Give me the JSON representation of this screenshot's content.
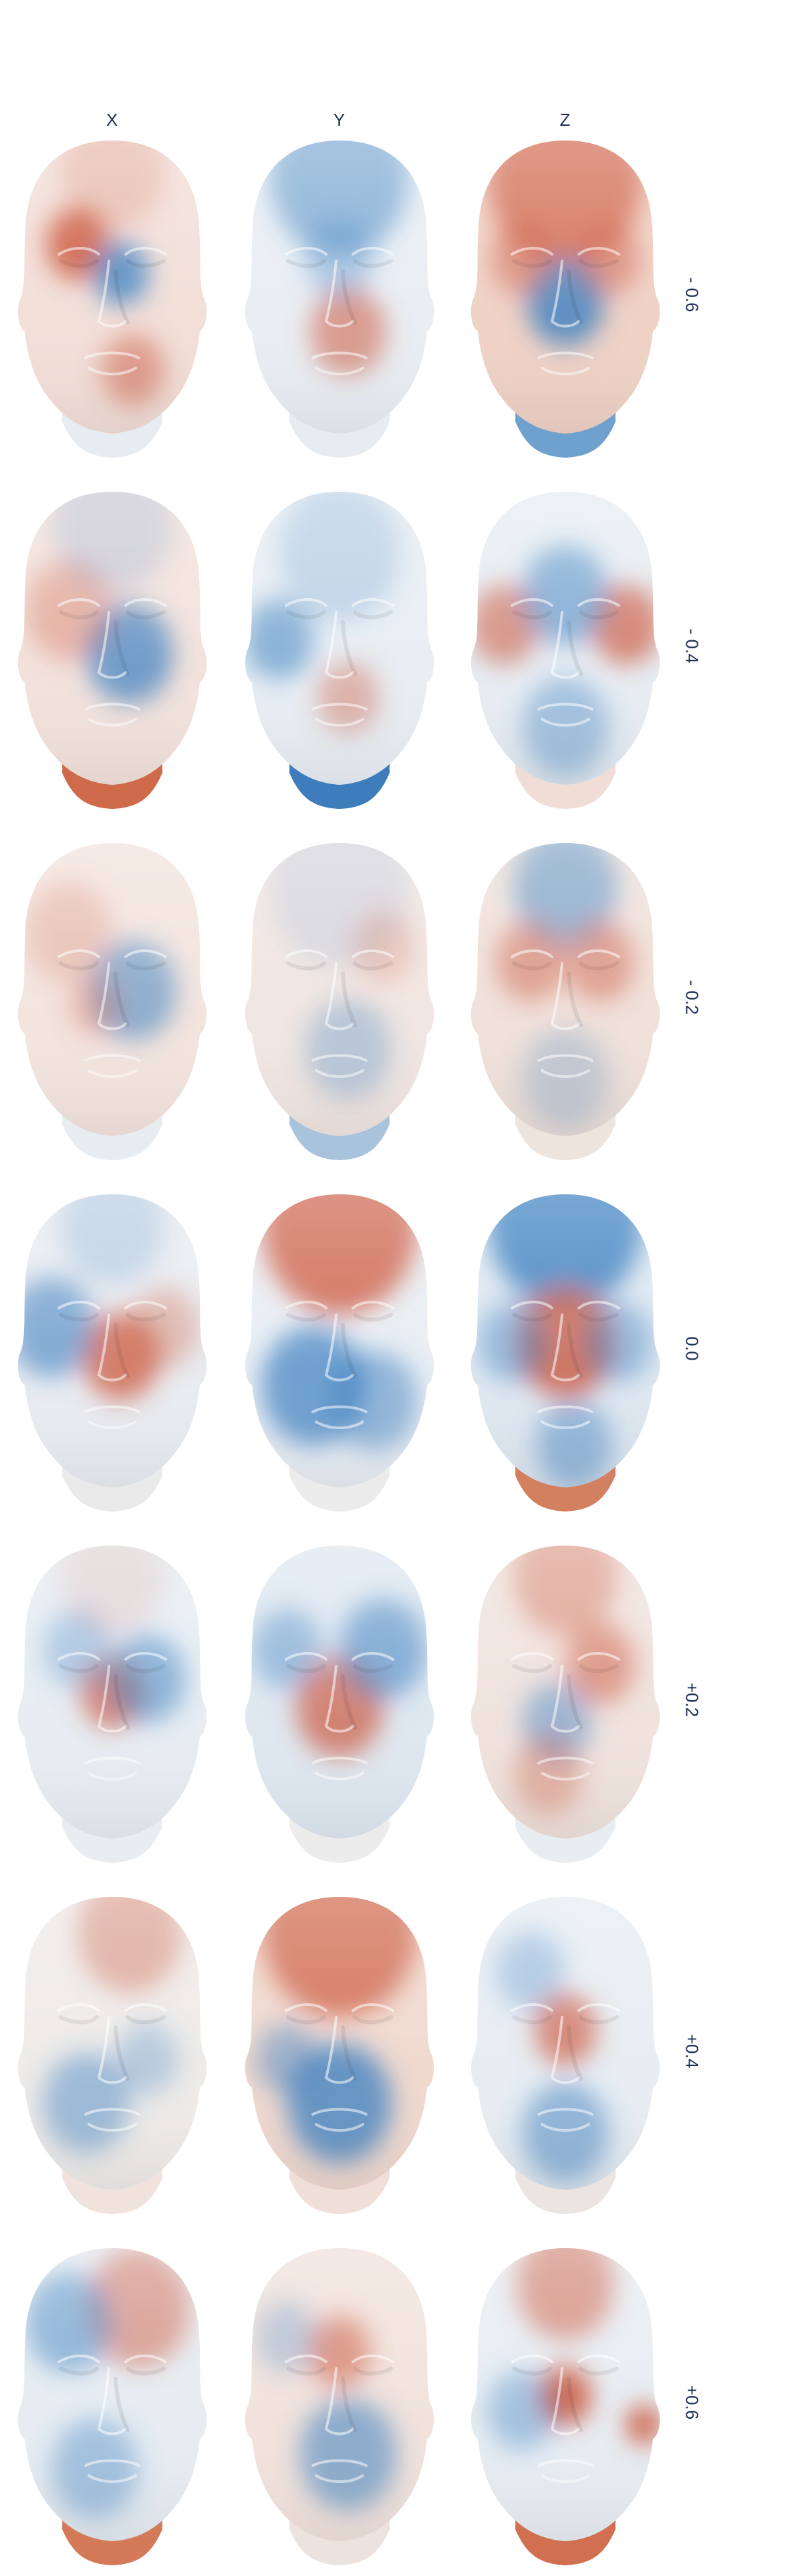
{
  "columns": [
    "X",
    "Y",
    "Z"
  ],
  "rows": [
    "- 0.6",
    "- 0.4",
    "- 0.2",
    "0.0",
    "+0.2",
    "+0.4",
    "+0.6"
  ],
  "colors": {
    "red": "#cc5a3f",
    "blue": "#3b7fc0",
    "neutral": "#efe8e3",
    "label": "#1f2f57"
  },
  "grid": [
    [
      {
        "base": "#f2dfd8",
        "neck": "#e6ecf2",
        "blobs": [
          [
            0.3,
            0.35,
            0.18,
            "red",
            0.9
          ],
          [
            0.55,
            0.45,
            0.16,
            "blue",
            0.8
          ],
          [
            0.62,
            0.78,
            0.18,
            "red",
            0.5
          ],
          [
            0.5,
            0.1,
            0.3,
            "red",
            0.25
          ]
        ]
      },
      {
        "base": "#e9eef4",
        "neck": "#e6ecf2",
        "blobs": [
          [
            0.5,
            0.12,
            0.4,
            "blue",
            0.55
          ],
          [
            0.55,
            0.65,
            0.22,
            "red",
            0.55
          ],
          [
            0.5,
            0.4,
            0.2,
            "blue",
            0.35
          ]
        ]
      },
      {
        "base": "#f0d2c6",
        "neck": "#6fa1cf",
        "blobs": [
          [
            0.5,
            0.12,
            0.45,
            "red",
            0.75
          ],
          [
            0.5,
            0.55,
            0.22,
            "blue",
            0.8
          ],
          [
            0.25,
            0.4,
            0.18,
            "red",
            0.5
          ],
          [
            0.75,
            0.4,
            0.18,
            "red",
            0.5
          ]
        ]
      }
    ],
    [
      {
        "base": "#f3e2dc",
        "neck": "#cf6a4a",
        "blobs": [
          [
            0.6,
            0.55,
            0.25,
            "blue",
            0.7
          ],
          [
            0.25,
            0.4,
            0.25,
            "red",
            0.35
          ],
          [
            0.5,
            0.1,
            0.35,
            "blue",
            0.2
          ]
        ]
      },
      {
        "base": "#e8eef4",
        "neck": "#3e7cbc",
        "blobs": [
          [
            0.15,
            0.5,
            0.2,
            "blue",
            0.55
          ],
          [
            0.55,
            0.7,
            0.18,
            "red",
            0.4
          ],
          [
            0.5,
            0.2,
            0.35,
            "blue",
            0.25
          ]
        ]
      },
      {
        "base": "#e7edf3",
        "neck": "#f0ded6",
        "blobs": [
          [
            0.15,
            0.45,
            0.2,
            "red",
            0.6
          ],
          [
            0.85,
            0.45,
            0.2,
            "red",
            0.7
          ],
          [
            0.5,
            0.35,
            0.25,
            "blue",
            0.55
          ],
          [
            0.5,
            0.8,
            0.25,
            "blue",
            0.4
          ]
        ]
      }
    ],
    [
      {
        "base": "#f3e4de",
        "neck": "#e8edf2",
        "blobs": [
          [
            0.62,
            0.5,
            0.25,
            "blue",
            0.55
          ],
          [
            0.25,
            0.3,
            0.25,
            "red",
            0.25
          ],
          [
            0.4,
            0.55,
            0.15,
            "red",
            0.3
          ]
        ]
      },
      {
        "base": "#f1e6e1",
        "neck": "#a9c3dd",
        "blobs": [
          [
            0.5,
            0.15,
            0.4,
            "blue",
            0.15
          ],
          [
            0.55,
            0.7,
            0.25,
            "blue",
            0.3
          ],
          [
            0.75,
            0.35,
            0.18,
            "red",
            0.25
          ]
        ]
      },
      {
        "base": "#f0e1da",
        "neck": "#ede4de",
        "blobs": [
          [
            0.5,
            0.15,
            0.3,
            "blue",
            0.55
          ],
          [
            0.3,
            0.4,
            0.2,
            "red",
            0.5
          ],
          [
            0.7,
            0.4,
            0.2,
            "red",
            0.5
          ],
          [
            0.5,
            0.8,
            0.25,
            "blue",
            0.25
          ]
        ]
      }
    ],
    [
      {
        "base": "#e9ecf1",
        "neck": "#eaeaea",
        "blobs": [
          [
            0.55,
            0.55,
            0.22,
            "red",
            0.75
          ],
          [
            0.15,
            0.45,
            0.25,
            "blue",
            0.6
          ],
          [
            0.8,
            0.45,
            0.2,
            "red",
            0.35
          ],
          [
            0.5,
            0.1,
            0.3,
            "blue",
            0.25
          ]
        ]
      },
      {
        "base": "#e9eef4",
        "neck": "#ececec",
        "blobs": [
          [
            0.5,
            0.1,
            0.45,
            "red",
            0.85
          ],
          [
            0.35,
            0.65,
            0.3,
            "blue",
            0.7
          ],
          [
            0.7,
            0.7,
            0.25,
            "blue",
            0.5
          ]
        ]
      },
      {
        "base": "#dfe8f1",
        "neck": "#d2805f",
        "blobs": [
          [
            0.5,
            0.08,
            0.45,
            "blue",
            0.9
          ],
          [
            0.5,
            0.5,
            0.28,
            "red",
            0.8
          ],
          [
            0.2,
            0.5,
            0.2,
            "blue",
            0.45
          ],
          [
            0.8,
            0.5,
            0.2,
            "blue",
            0.45
          ],
          [
            0.55,
            0.85,
            0.22,
            "blue",
            0.45
          ]
        ]
      }
    ],
    [
      {
        "base": "#e7edf3",
        "neck": "#e8edf2",
        "blobs": [
          [
            0.5,
            0.5,
            0.18,
            "red",
            0.7
          ],
          [
            0.7,
            0.45,
            0.22,
            "blue",
            0.55
          ],
          [
            0.3,
            0.35,
            0.2,
            "blue",
            0.35
          ],
          [
            0.5,
            0.1,
            0.3,
            "red",
            0.15
          ]
        ]
      },
      {
        "base": "#dfe8f1",
        "neck": "#ececec",
        "blobs": [
          [
            0.5,
            0.55,
            0.25,
            "red",
            0.7
          ],
          [
            0.75,
            0.35,
            0.25,
            "blue",
            0.6
          ],
          [
            0.2,
            0.35,
            0.2,
            "blue",
            0.45
          ]
        ]
      },
      {
        "base": "#f0e3de",
        "neck": "#e8edf2",
        "blobs": [
          [
            0.5,
            0.1,
            0.3,
            "red",
            0.45
          ],
          [
            0.7,
            0.4,
            0.2,
            "red",
            0.55
          ],
          [
            0.45,
            0.6,
            0.2,
            "blue",
            0.45
          ],
          [
            0.4,
            0.78,
            0.2,
            "red",
            0.35
          ]
        ]
      }
    ],
    [
      {
        "base": "#eeebe9",
        "neck": "#f0e2dc",
        "blobs": [
          [
            0.6,
            0.12,
            0.3,
            "red",
            0.45
          ],
          [
            0.35,
            0.7,
            0.25,
            "blue",
            0.45
          ],
          [
            0.7,
            0.55,
            0.18,
            "blue",
            0.3
          ]
        ]
      },
      {
        "base": "#f0d9cf",
        "neck": "#efdfd8",
        "blobs": [
          [
            0.5,
            0.1,
            0.45,
            "red",
            0.8
          ],
          [
            0.5,
            0.7,
            0.3,
            "blue",
            0.75
          ],
          [
            0.2,
            0.55,
            0.18,
            "blue",
            0.45
          ]
        ]
      },
      {
        "base": "#e7edf3",
        "neck": "#ebe4e0",
        "blobs": [
          [
            0.5,
            0.45,
            0.18,
            "red",
            0.7
          ],
          [
            0.3,
            0.25,
            0.2,
            "blue",
            0.35
          ],
          [
            0.5,
            0.8,
            0.25,
            "blue",
            0.5
          ]
        ]
      }
    ],
    [
      {
        "base": "#e6ecf2",
        "neck": "#d57a59",
        "blobs": [
          [
            0.65,
            0.2,
            0.3,
            "red",
            0.55
          ],
          [
            0.25,
            0.25,
            0.25,
            "blue",
            0.55
          ],
          [
            0.4,
            0.75,
            0.25,
            "blue",
            0.4
          ]
        ]
      },
      {
        "base": "#f1e2dc",
        "neck": "#ece3de",
        "blobs": [
          [
            0.5,
            0.35,
            0.18,
            "red",
            0.6
          ],
          [
            0.55,
            0.7,
            0.28,
            "blue",
            0.55
          ],
          [
            0.2,
            0.3,
            0.18,
            "blue",
            0.3
          ]
        ]
      },
      {
        "base": "#e7edf3",
        "neck": "#d07050",
        "blobs": [
          [
            0.5,
            0.12,
            0.28,
            "red",
            0.6
          ],
          [
            0.5,
            0.5,
            0.15,
            "red",
            0.9
          ],
          [
            0.95,
            0.6,
            0.1,
            "red",
            0.9
          ],
          [
            0.25,
            0.55,
            0.2,
            "blue",
            0.4
          ]
        ]
      }
    ]
  ]
}
